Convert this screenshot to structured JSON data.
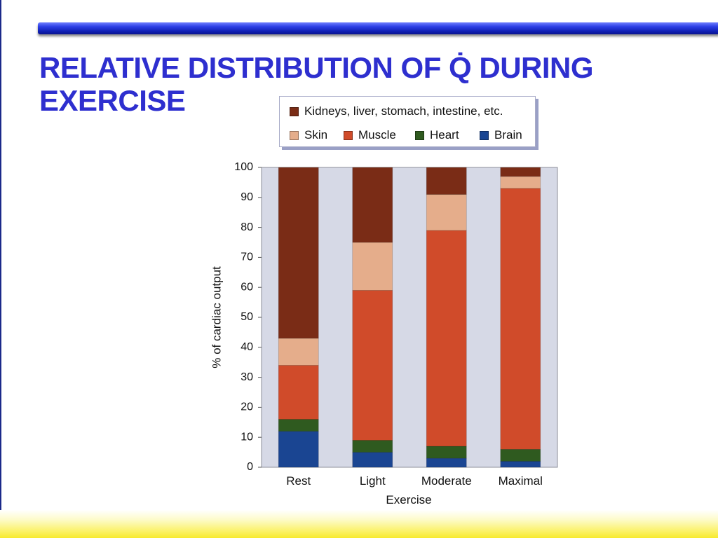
{
  "slide": {
    "title_line1": "RELATIVE DISTRIBUTION OF Q̇ DURING",
    "title_line2": "EXERCISE"
  },
  "colors": {
    "title": "#2e2fcf",
    "plot_background": "#d6d9e6",
    "brain": "#1a4592",
    "heart": "#2f5a1f",
    "muscle": "#d04b2a",
    "skin": "#e5ad8b",
    "other": "#7a2c16"
  },
  "chart_data": {
    "type": "bar",
    "stacked": true,
    "title": "",
    "xlabel": "Exercise",
    "ylabel": "% of cardiac output",
    "ylim": [
      0,
      100
    ],
    "yticks": [
      0,
      10,
      20,
      30,
      40,
      50,
      60,
      70,
      80,
      90,
      100
    ],
    "grid": false,
    "legend_position": "top",
    "categories": [
      "Rest",
      "Light",
      "Moderate",
      "Maximal"
    ],
    "series": [
      {
        "key": "brain",
        "name": "Brain",
        "values": [
          12,
          5,
          3,
          2
        ]
      },
      {
        "key": "heart",
        "name": "Heart",
        "values": [
          4,
          4,
          4,
          4
        ]
      },
      {
        "key": "muscle",
        "name": "Muscle",
        "values": [
          18,
          50,
          72,
          87
        ]
      },
      {
        "key": "skin",
        "name": "Skin",
        "values": [
          9,
          16,
          12,
          4
        ]
      },
      {
        "key": "other",
        "name": "Kidneys, liver, stomach, intestine, etc.",
        "values": [
          57,
          25,
          9,
          3
        ]
      }
    ],
    "legend_rows": [
      [
        "other"
      ],
      [
        "skin",
        "muscle",
        "heart",
        "brain"
      ]
    ]
  }
}
